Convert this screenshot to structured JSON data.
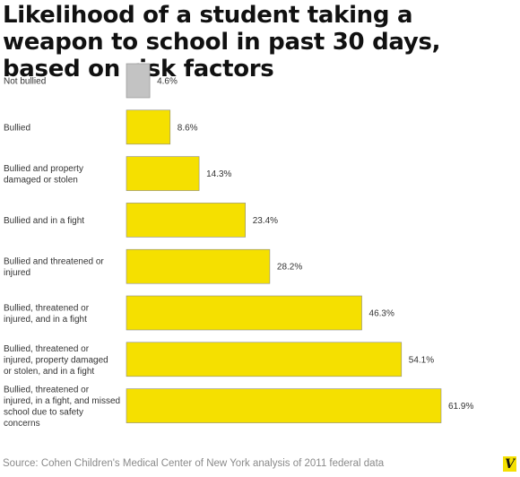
{
  "header": {
    "title": "Likelihood of a student taking a weapon to school in past 30 days, based on risk factors"
  },
  "footer": {
    "source": "Source: Cohen Children's Medical Center of New York analysis of 2011 federal data",
    "logo_text": "V"
  },
  "colors": {
    "highlight": "#f5e000",
    "baseline": "#c3c3c3",
    "bar_stroke": "#8a8a8a"
  },
  "chart_data": {
    "type": "bar",
    "orientation": "horizontal",
    "title": "Likelihood of a student taking a weapon to school in past 30 days, based on risk factors",
    "categories": [
      "Not bullied",
      "Bullied",
      "Bullied and property damaged or stolen",
      "Bullied and in a fight",
      "Bullied and threatened or injured",
      "Bullied, threatened or injured, and in a fight",
      "Bullied, threatened or injured, property damaged or stolen, and in a fight",
      "Bullied, threatened or injured, in a fight, and missed school due to safety concerns"
    ],
    "category_lines": [
      [
        "Not bullied"
      ],
      [
        "Bullied"
      ],
      [
        "Bullied and property",
        "damaged or stolen"
      ],
      [
        "Bullied and in a fight"
      ],
      [
        "Bullied and threatened or",
        "injured"
      ],
      [
        "Bullied, threatened or",
        "injured, and in a fight"
      ],
      [
        "Bullied, threatened or",
        "injured, property damaged",
        "or stolen, and in a fight"
      ],
      [
        "Bullied, threatened or",
        "injured, in a fight, and missed",
        "school due to safety",
        "concerns"
      ]
    ],
    "values": [
      4.6,
      8.6,
      14.3,
      23.4,
      28.2,
      46.3,
      54.1,
      61.9
    ],
    "value_labels": [
      "4.6%",
      "8.6%",
      "14.3%",
      "23.4%",
      "28.2%",
      "46.3%",
      "54.1%",
      "61.9%"
    ],
    "bar_colors": [
      "#c3c3c3",
      "#f5e000",
      "#f5e000",
      "#f5e000",
      "#f5e000",
      "#f5e000",
      "#f5e000",
      "#f5e000"
    ],
    "unit": "%",
    "xlim": [
      0,
      61.9
    ],
    "grid": false,
    "legend": false
  }
}
